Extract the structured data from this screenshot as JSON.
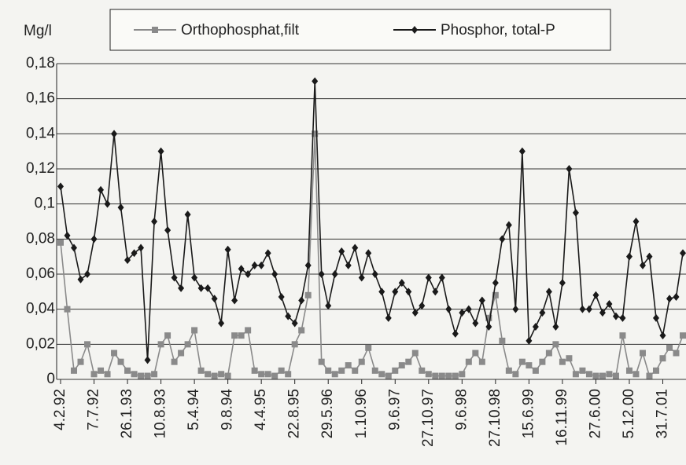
{
  "chart_data": {
    "type": "line",
    "y_label": "Mg/l",
    "categories": [
      "4.2.92",
      null,
      null,
      null,
      null,
      "7.7.92",
      null,
      null,
      null,
      null,
      "26.1.93",
      null,
      null,
      null,
      null,
      "10.8.93",
      null,
      null,
      null,
      null,
      "5.4.94",
      null,
      null,
      null,
      null,
      "9.8.94",
      null,
      null,
      null,
      null,
      "4.4.95",
      null,
      null,
      null,
      null,
      "22.8.95",
      null,
      null,
      null,
      null,
      "29.5.96",
      null,
      null,
      null,
      null,
      "1.10.96",
      null,
      null,
      null,
      null,
      "9.6.97",
      null,
      null,
      null,
      null,
      "27.10.97",
      null,
      null,
      null,
      null,
      "9.6.98",
      null,
      null,
      null,
      null,
      "27.10.98",
      null,
      null,
      null,
      null,
      "15.6.99",
      null,
      null,
      null,
      null,
      "16.11.99",
      null,
      null,
      null,
      null,
      "27.6.00",
      null,
      null,
      null,
      null,
      "5.12.00",
      null,
      null,
      null,
      null,
      "31.7.01",
      null,
      null,
      null
    ],
    "series": [
      {
        "name": "Orthophosphat,filt",
        "color": "#8a8a8a",
        "marker": "square",
        "values": [
          0.078,
          0.04,
          0.005,
          0.01,
          0.02,
          0.003,
          0.005,
          0.003,
          0.015,
          0.01,
          0.005,
          0.003,
          0.002,
          0.002,
          0.003,
          0.02,
          0.025,
          0.01,
          0.015,
          0.02,
          0.028,
          0.005,
          0.003,
          0.002,
          0.003,
          0.002,
          0.025,
          0.025,
          0.028,
          0.005,
          0.003,
          0.003,
          0.002,
          0.005,
          0.003,
          0.02,
          0.028,
          0.048,
          0.14,
          0.01,
          0.005,
          0.003,
          0.005,
          0.008,
          0.005,
          0.01,
          0.018,
          0.005,
          0.003,
          0.002,
          0.005,
          0.008,
          0.01,
          0.015,
          0.005,
          0.003,
          0.002,
          0.002,
          0.002,
          0.002,
          0.003,
          0.01,
          0.015,
          0.01,
          0.035,
          0.048,
          0.022,
          0.005,
          0.003,
          0.01,
          0.008,
          0.005,
          0.01,
          0.015,
          0.02,
          0.01,
          0.012,
          0.003,
          0.005,
          0.003,
          0.002,
          0.002,
          0.003,
          0.002,
          0.025,
          0.005,
          0.003,
          0.015,
          0.002,
          0.005,
          0.012,
          0.018,
          0.015,
          0.025
        ]
      },
      {
        "name": "Phosphor, total-P",
        "color": "#1a1a1a",
        "marker": "diamond",
        "values": [
          0.11,
          0.082,
          0.075,
          0.057,
          0.06,
          0.08,
          0.108,
          0.1,
          0.14,
          0.098,
          0.068,
          0.072,
          0.075,
          0.011,
          0.09,
          0.13,
          0.085,
          0.058,
          0.052,
          0.094,
          0.058,
          0.052,
          0.052,
          0.046,
          0.032,
          0.074,
          0.045,
          0.063,
          0.06,
          0.065,
          0.065,
          0.072,
          0.06,
          0.047,
          0.036,
          0.032,
          0.045,
          0.065,
          0.17,
          0.06,
          0.042,
          0.06,
          0.073,
          0.065,
          0.075,
          0.058,
          0.072,
          0.06,
          0.05,
          0.035,
          0.05,
          0.055,
          0.05,
          0.038,
          0.042,
          0.058,
          0.05,
          0.058,
          0.04,
          0.026,
          0.038,
          0.04,
          0.032,
          0.045,
          0.03,
          0.055,
          0.08,
          0.088,
          0.04,
          0.13,
          0.022,
          0.03,
          0.038,
          0.05,
          0.03,
          0.055,
          0.12,
          0.095,
          0.04,
          0.04,
          0.048,
          0.038,
          0.043,
          0.036,
          0.035,
          0.07,
          0.09,
          0.065,
          0.07,
          0.035,
          0.025,
          0.046,
          0.047,
          0.072
        ]
      }
    ],
    "ylim": [
      0,
      0.18
    ],
    "yticks": [
      0,
      {
        "value": 0.02,
        "label": "0,02"
      },
      {
        "value": 0.04,
        "label": "0,04"
      },
      {
        "value": 0.06,
        "label": "0,06"
      },
      {
        "value": 0.08,
        "label": "0,08"
      },
      {
        "value": 0.1,
        "label": "0,1"
      },
      {
        "value": 0.12,
        "label": "0,12"
      },
      {
        "value": 0.14,
        "label": "0,14"
      },
      {
        "value": 0.16,
        "label": "0,16"
      },
      {
        "value": 0.18,
        "label": "0,18"
      }
    ],
    "grid": true
  }
}
